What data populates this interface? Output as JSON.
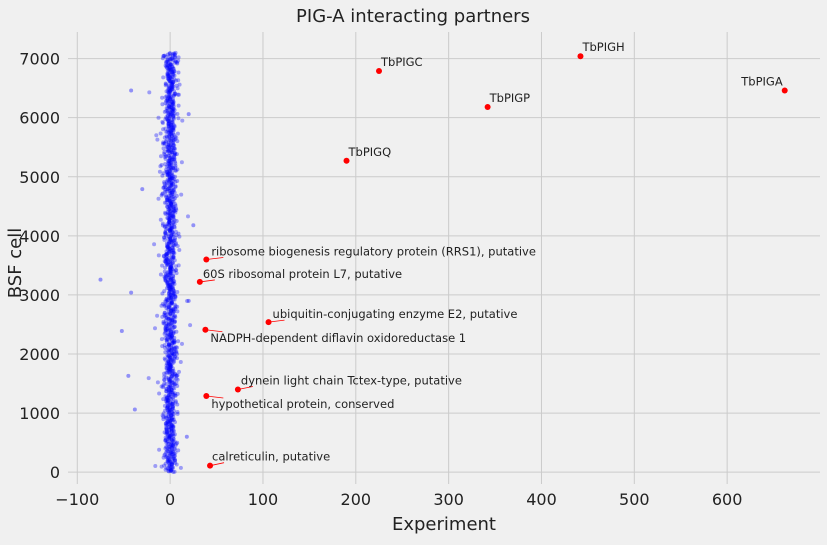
{
  "chart_data": {
    "type": "scatter",
    "title": "PIG-A interacting partners",
    "xlabel": "Experiment",
    "ylabel": "BSF cell",
    "xlim": [
      -110,
      700
    ],
    "ylim": [
      -200,
      7450
    ],
    "x_ticks": [
      -100,
      0,
      100,
      200,
      300,
      400,
      500,
      600
    ],
    "y_ticks": [
      0,
      1000,
      2000,
      3000,
      4000,
      5000,
      6000,
      7000
    ],
    "grid": true,
    "colors": {
      "background": "#f0f0f0",
      "grid": "#cbcbcb",
      "background_points": "#0000ff",
      "highlight_points": "#ff0000",
      "annotation_line": "#ff0000"
    },
    "background_series": {
      "description_free_count": 7100,
      "x_center": 0,
      "outliers": [
        {
          "x": -42,
          "y": 6460
        },
        {
          "x": -30,
          "y": 4790
        },
        {
          "x": -75,
          "y": 3260
        },
        {
          "x": -42,
          "y": 3040
        },
        {
          "x": -52,
          "y": 2390
        },
        {
          "x": -45,
          "y": 1630
        },
        {
          "x": -38,
          "y": 1060
        },
        {
          "x": 20,
          "y": 6060
        },
        {
          "x": 25,
          "y": 4180
        },
        {
          "x": 20,
          "y": 2900
        },
        {
          "x": 18,
          "y": 600
        }
      ]
    },
    "highlighted": [
      {
        "label": "TbPIGA",
        "x": 662,
        "y": 6460
      },
      {
        "label": "TbPIGH",
        "x": 442,
        "y": 7040
      },
      {
        "label": "TbPIGC",
        "x": 225,
        "y": 6790
      },
      {
        "label": "TbPIGP",
        "x": 342,
        "y": 6180
      },
      {
        "label": "TbPIGQ",
        "x": 190,
        "y": 5270
      },
      {
        "label": "ribosome biogenesis regulatory protein (RRS1), putative",
        "x": 39,
        "y": 3600
      },
      {
        "label": "60S ribosomal protein L7, putative",
        "x": 32,
        "y": 3220
      },
      {
        "label": "ubiquitin-conjugating enzyme E2, putative",
        "x": 106,
        "y": 2540
      },
      {
        "label": "NADPH-dependent diflavin oxidoreductase 1",
        "x": 38,
        "y": 2410
      },
      {
        "label": "dynein light chain Tctex-type, putative",
        "x": 73,
        "y": 1400
      },
      {
        "label": "hypothetical protein, conserved",
        "x": 39,
        "y": 1290
      },
      {
        "label": "calreticulin, putative",
        "x": 43,
        "y": 110
      }
    ]
  }
}
